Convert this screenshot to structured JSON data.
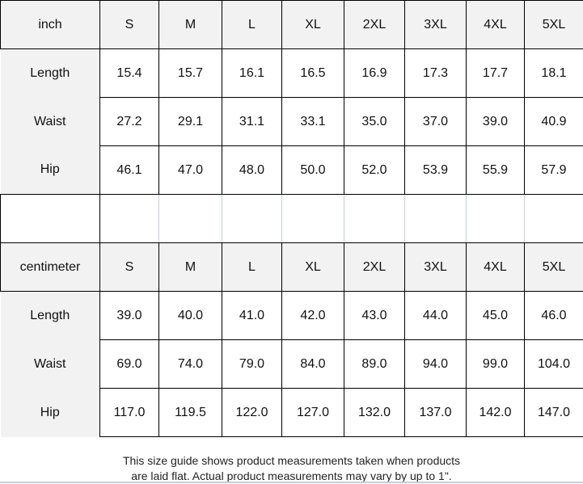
{
  "inch": {
    "unit": "inch",
    "sizes": [
      "S",
      "M",
      "L",
      "XL",
      "2XL",
      "3XL",
      "4XL",
      "5XL"
    ],
    "rows": [
      {
        "label": "Length",
        "values": [
          "15.4",
          "15.7",
          "16.1",
          "16.5",
          "16.9",
          "17.3",
          "17.7",
          "18.1"
        ]
      },
      {
        "label": "Waist",
        "values": [
          "27.2",
          "29.1",
          "31.1",
          "33.1",
          "35.0",
          "37.0",
          "39.0",
          "40.9"
        ]
      },
      {
        "label": "Hip",
        "values": [
          "46.1",
          "47.0",
          "48.0",
          "50.0",
          "52.0",
          "53.9",
          "55.9",
          "57.9"
        ]
      }
    ]
  },
  "centimeter": {
    "unit": "centimeter",
    "sizes": [
      "S",
      "M",
      "L",
      "XL",
      "2XL",
      "3XL",
      "4XL",
      "5XL"
    ],
    "rows": [
      {
        "label": "Length",
        "values": [
          "39.0",
          "40.0",
          "41.0",
          "42.0",
          "43.0",
          "44.0",
          "45.0",
          "46.0"
        ]
      },
      {
        "label": "Waist",
        "values": [
          "69.0",
          "74.0",
          "79.0",
          "84.0",
          "89.0",
          "94.0",
          "99.0",
          "104.0"
        ]
      },
      {
        "label": "Hip",
        "values": [
          "117.0",
          "119.5",
          "122.0",
          "127.0",
          "132.0",
          "137.0",
          "142.0",
          "147.0"
        ]
      }
    ]
  },
  "note": {
    "line1": "This size guide shows product measurements taken when products",
    "line2": "are laid flat. Actual product measurements may vary by up to 1\"."
  }
}
